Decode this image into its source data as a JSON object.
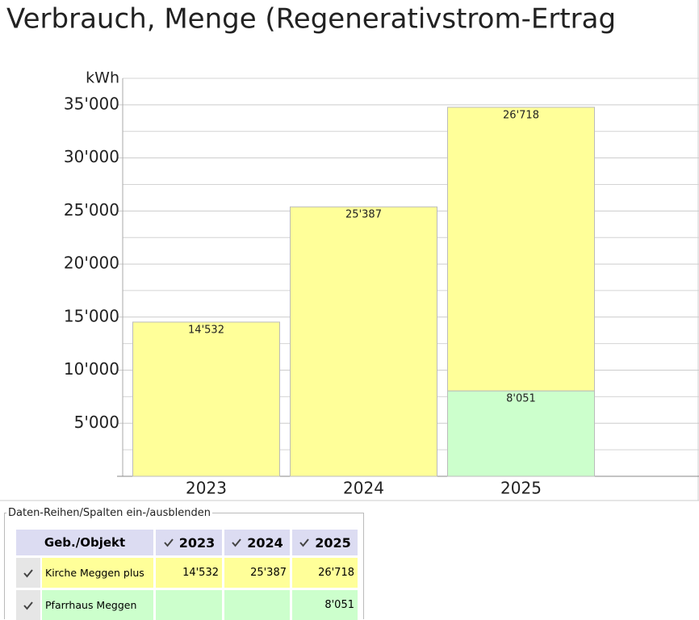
{
  "chart_data": {
    "type": "stacked_bar",
    "title": "Verbrauch, Menge (Regenerativstrom-Ertrag",
    "y_label": "kWh",
    "categories": [
      "2023",
      "2024",
      "2025"
    ],
    "series": [
      {
        "name": "Kirche Meggen plus",
        "color": "#ffff99",
        "values": [
          14532,
          25387,
          26718
        ],
        "value_labels": [
          "14'532",
          "25'387",
          "26'718"
        ]
      },
      {
        "name": "Pfarrhaus Meggen",
        "color": "#ccffcc",
        "values": [
          null,
          null,
          8051
        ],
        "value_labels": [
          null,
          null,
          "8'051"
        ]
      }
    ],
    "ylim": [
      0,
      37500
    ],
    "yticks": [
      {
        "value": 5000,
        "label": "5'000"
      },
      {
        "value": 10000,
        "label": "10'000"
      },
      {
        "value": 15000,
        "label": "15'000"
      },
      {
        "value": 20000,
        "label": "20'000"
      },
      {
        "value": 25000,
        "label": "25'000"
      },
      {
        "value": 30000,
        "label": "30'000"
      },
      {
        "value": 35000,
        "label": "35'000"
      }
    ],
    "minor_yticks": [
      2500,
      7500,
      12500,
      17500,
      22500,
      27500,
      32500,
      37500
    ],
    "grid": true
  },
  "table": {
    "legend": "Daten-Reihen/Spalten ein-/ausblenden",
    "header": "Geb./Objekt"
  }
}
